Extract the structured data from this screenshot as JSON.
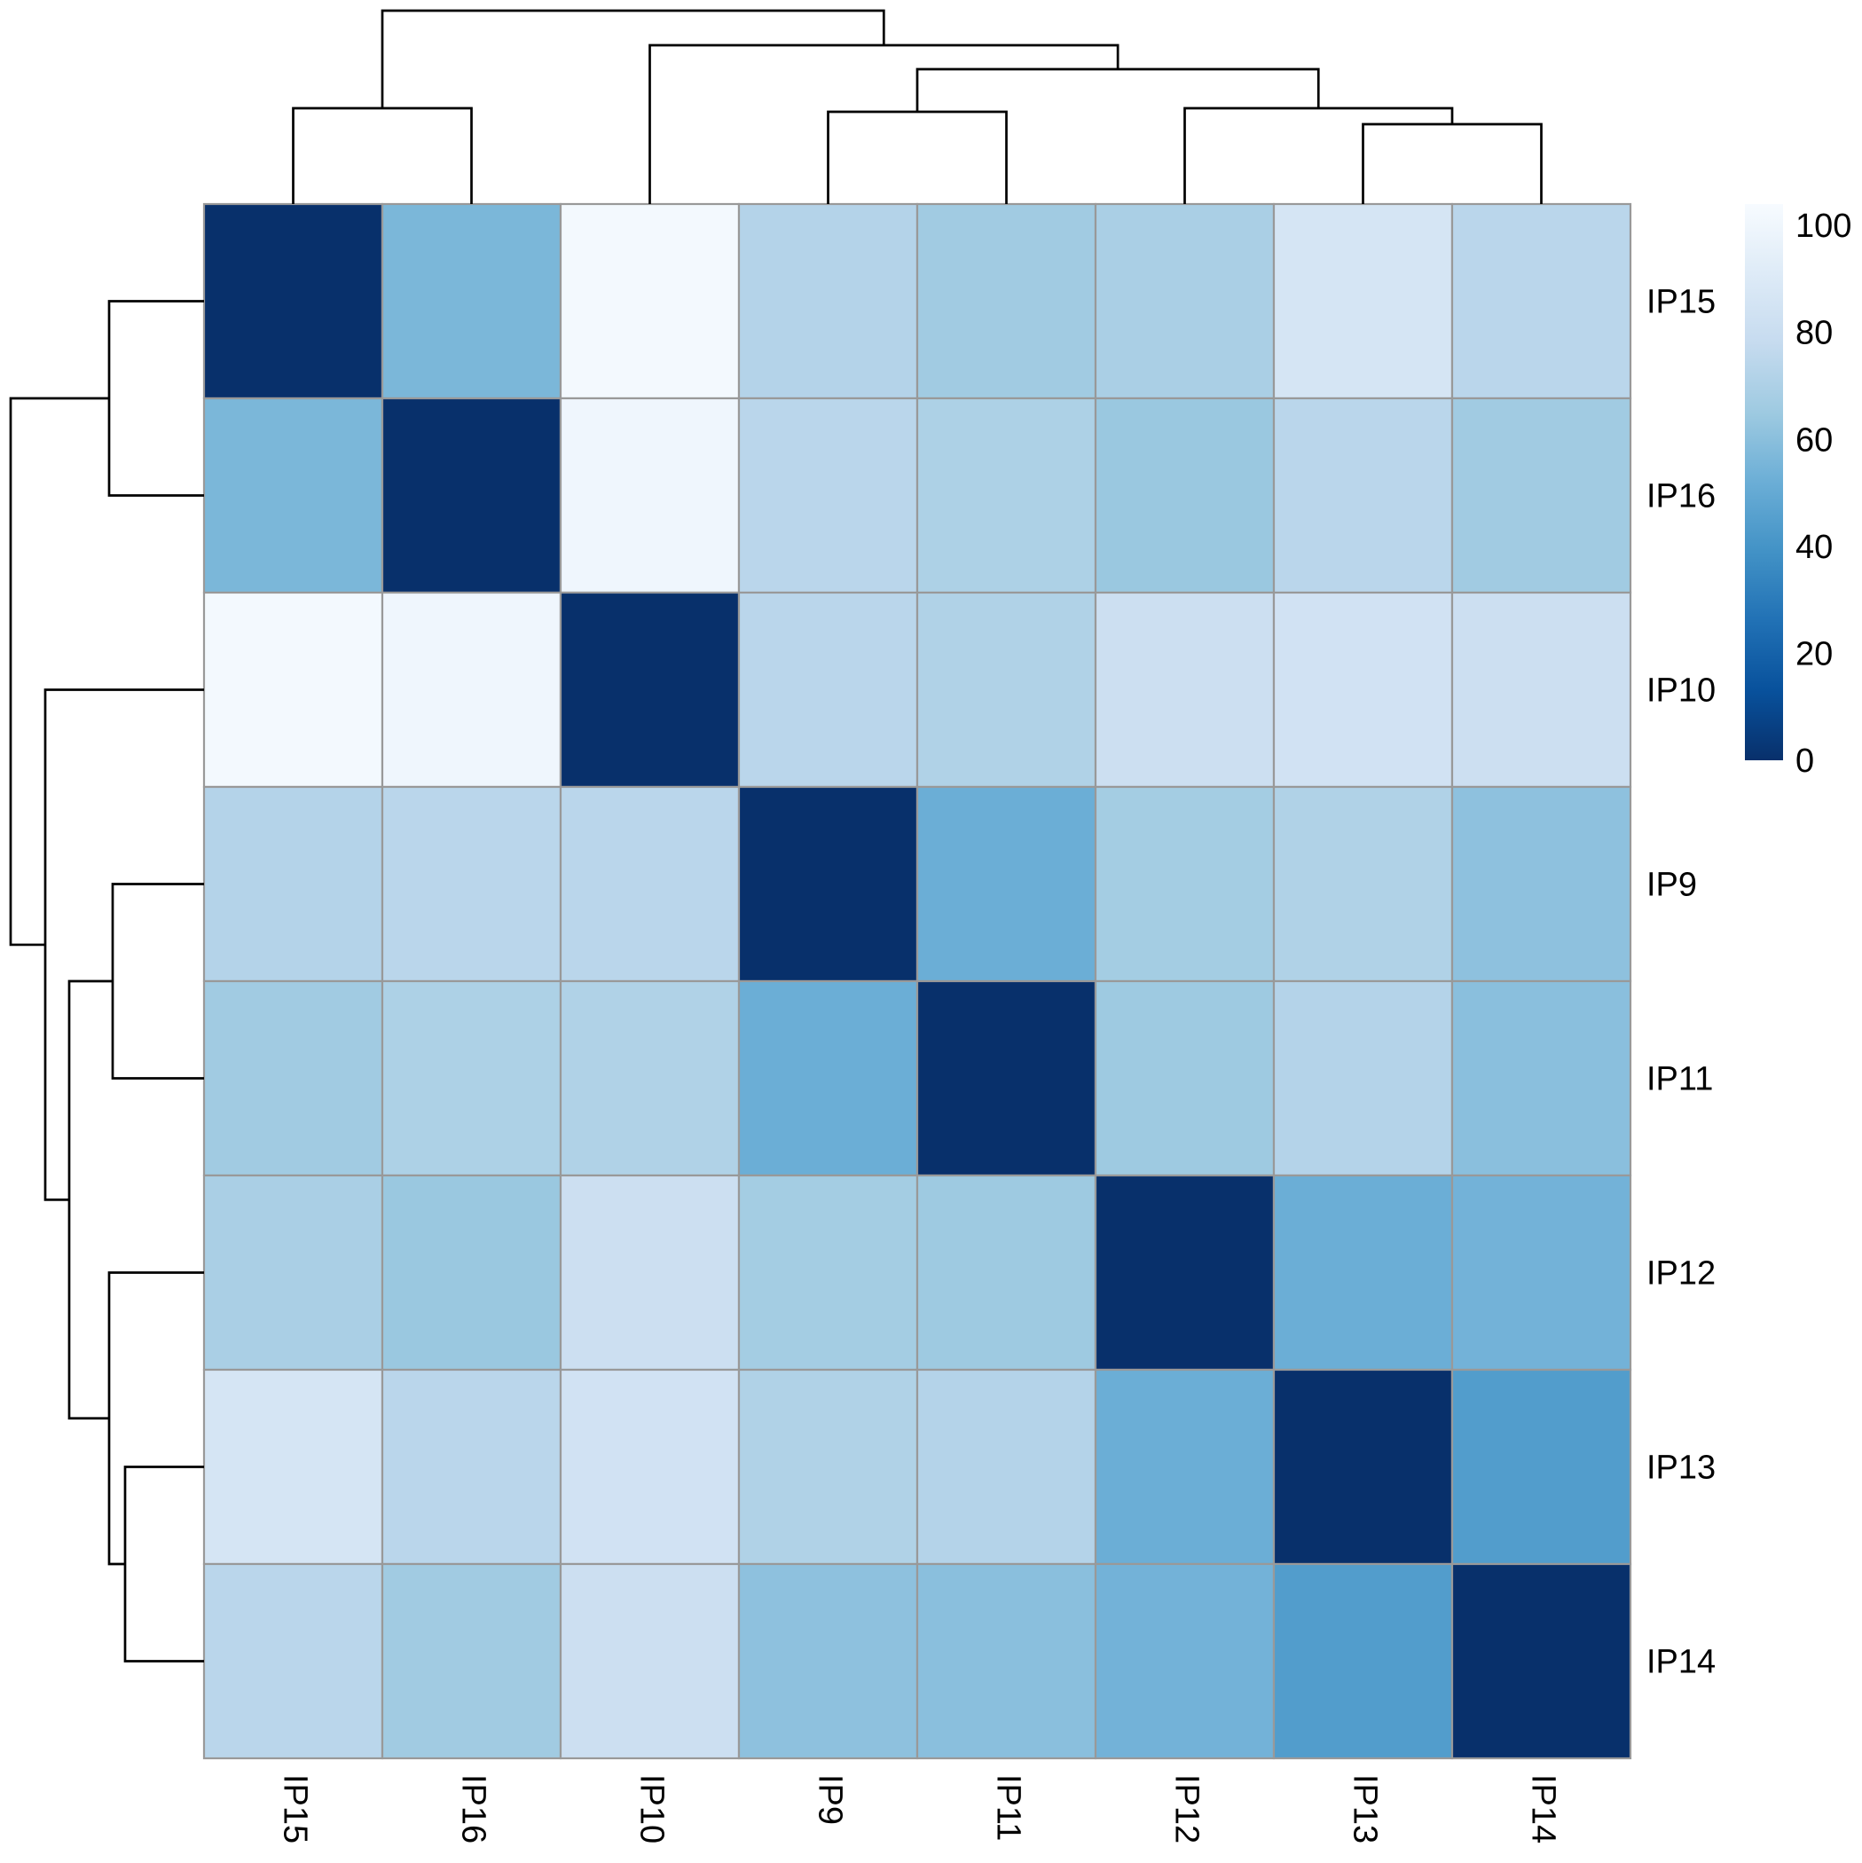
{
  "chart_data": {
    "type": "heatmap",
    "title": "",
    "row_labels": [
      "IP15",
      "IP16",
      "IP10",
      "IP9",
      "IP11",
      "IP12",
      "IP13",
      "IP14"
    ],
    "col_labels": [
      "IP15",
      "IP16",
      "IP10",
      "IP9",
      "IP11",
      "IP12",
      "IP13",
      "IP14"
    ],
    "values": [
      [
        0,
        56,
        102,
        72,
        66,
        69,
        86,
        74
      ],
      [
        56,
        0,
        100,
        74,
        70,
        64,
        74,
        66
      ],
      [
        102,
        100,
        0,
        74,
        71,
        81,
        84,
        81
      ],
      [
        72,
        74,
        74,
        0,
        52,
        67,
        71,
        61
      ],
      [
        66,
        70,
        71,
        52,
        0,
        65,
        72,
        60
      ],
      [
        69,
        64,
        81,
        67,
        65,
        0,
        52,
        54
      ],
      [
        86,
        74,
        84,
        71,
        72,
        52,
        0,
        44
      ],
      [
        74,
        66,
        81,
        61,
        60,
        54,
        44,
        0
      ]
    ],
    "colorbar": {
      "ticks": [
        0,
        20,
        40,
        60,
        80,
        100
      ],
      "range": [
        0,
        104
      ],
      "colors": [
        "#08306b",
        "#08519c",
        "#2171b5",
        "#4292c6",
        "#6baed6",
        "#9ecae1",
        "#c6dbef",
        "#deebf7",
        "#f7fbff"
      ]
    },
    "dendrogram": "hierarchical clustering on rows and columns"
  }
}
